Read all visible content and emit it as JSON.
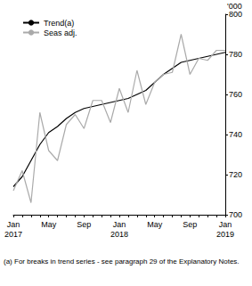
{
  "chart_data": {
    "type": "line",
    "y_label": "'000",
    "footnote": "(a) For breaks in trend series - see paragraph 29 of the Explanatory Notes.",
    "categories": [
      "Jan\n2017",
      null,
      null,
      null,
      "May",
      null,
      null,
      null,
      "Sep",
      null,
      null,
      null,
      "Jan\n2018",
      null,
      null,
      null,
      "May",
      null,
      null,
      null,
      "Sep",
      null,
      null,
      null,
      "Jan\n2019"
    ],
    "series": [
      {
        "name": "Trend(a)",
        "color": "#000000",
        "values": [
          714,
          719,
          727,
          735,
          741,
          744,
          748,
          751,
          753,
          754,
          755,
          756,
          757,
          758,
          760,
          762,
          766,
          770,
          773,
          776,
          777,
          778,
          779,
          780,
          781
        ]
      },
      {
        "name": "Seas adj.",
        "color": "#aaaaaa",
        "values": [
          712,
          722,
          706,
          751,
          732,
          727,
          745,
          750,
          743,
          757,
          757,
          746,
          763,
          751,
          772,
          755,
          766,
          770,
          771,
          790,
          770,
          778,
          777,
          782,
          782
        ]
      }
    ],
    "ylim": [
      700,
      800
    ],
    "yticks": [
      700,
      720,
      740,
      760,
      780,
      800
    ],
    "grid": false,
    "legend": "top-left"
  }
}
